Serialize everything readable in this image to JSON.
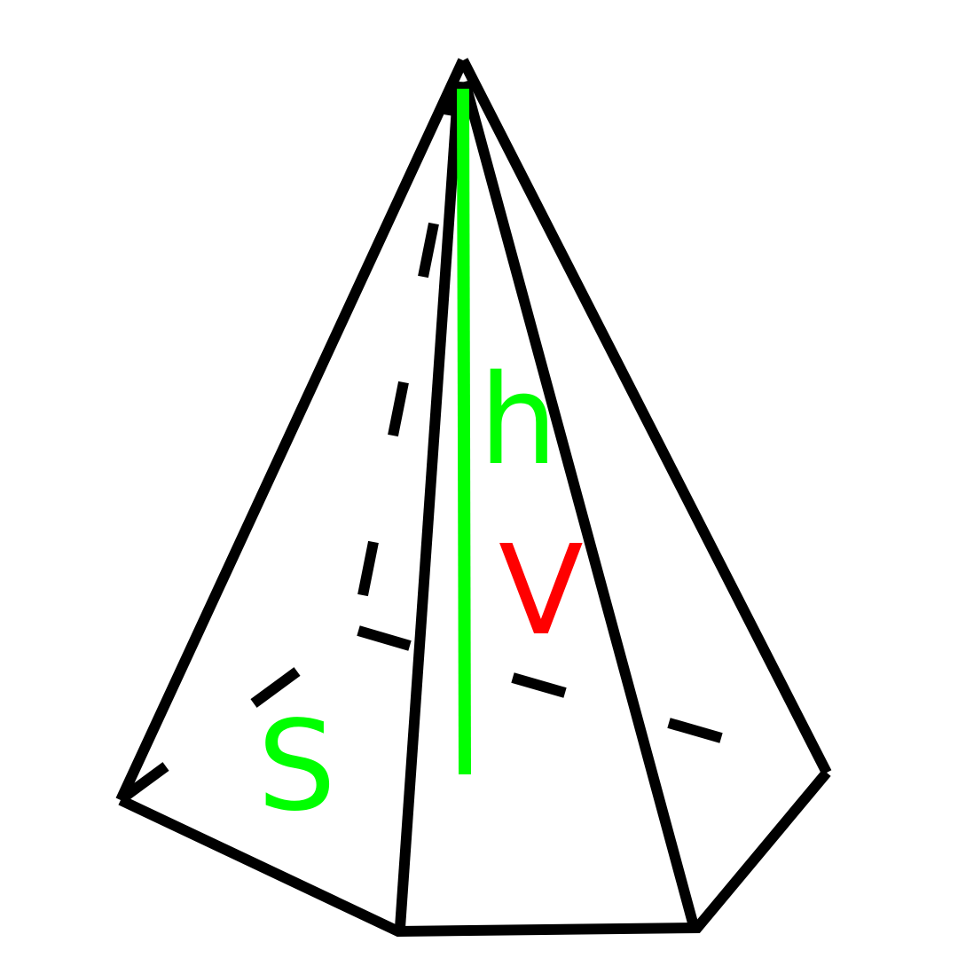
{
  "labels": {
    "height": "h",
    "volume": "V",
    "base_area": "S"
  },
  "colors": {
    "edge": "#000000",
    "height": "#00ff00",
    "volume": "#ff0000",
    "base_area": "#00ff00",
    "background": "#ffffff"
  }
}
